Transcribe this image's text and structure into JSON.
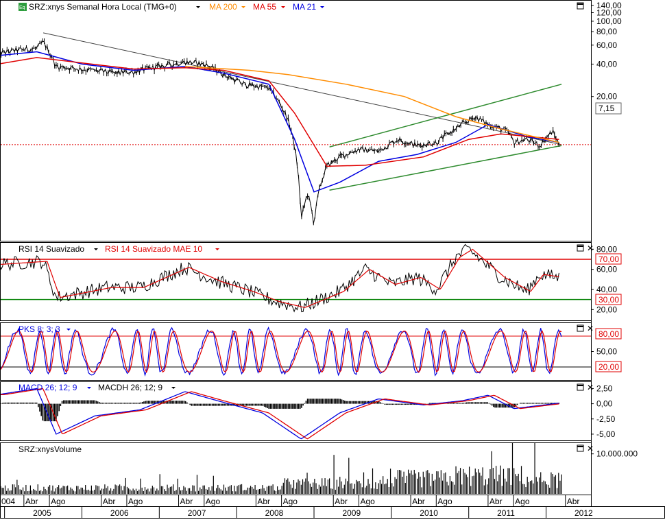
{
  "colors": {
    "price": "#000000",
    "ma200": "#ff8c00",
    "ma55": "#e00000",
    "ma21": "#0000e0",
    "channel": "#2e8b2e",
    "trendline": "#404040",
    "last_price": "#e00000",
    "rsi_upper": "#e00000",
    "rsi_lower": "#008000",
    "macd": "#0000e0",
    "signal": "#e00000",
    "histogram": "#000000",
    "volume": "#000000",
    "panel_border": "#000000"
  },
  "main_panel": {
    "icon": "Eq",
    "symbol": "SRZ:xnys Semanal Hora Local (TMG+0)",
    "ma200_label": "MA 200",
    "ma55_label": "MA 55",
    "ma21_label": "MA 21",
    "last_price_label": "7,15",
    "y_ticks": [
      "140,00",
      "120,00",
      "100,00",
      "80,00",
      "60,00",
      "40,00",
      "20,00"
    ]
  },
  "rsi_panel": {
    "label": "RSI 14 Suavizado",
    "label2": "RSI 14 Suavizado MAE 10",
    "level_high": "70,00",
    "level_low": "30,00",
    "y_ticks": [
      "80,00",
      "60,00",
      "40,00",
      "20,00"
    ]
  },
  "pks_panel": {
    "label": "PKS 8; 3; 3",
    "level_high": "80,00",
    "level_low": "20,00",
    "y_ticks": [
      "50,00"
    ]
  },
  "macd_panel": {
    "label": "MACD 26; 12; 9",
    "label2": "MACDH 26; 12; 9",
    "y_ticks": [
      "2,50",
      "0,00",
      "-2,50",
      "-5,00"
    ]
  },
  "volume_panel": {
    "label": "SRZ:xnysVolume",
    "y_ticks": [
      "10.000.000"
    ]
  },
  "time_axis": {
    "month_labels": [
      "004",
      "Abr",
      "Ago",
      "Abr",
      "Ago",
      "Abr",
      "Ago",
      "Abr",
      "Ago",
      "Abr",
      "Ago",
      "Abr",
      "Ago",
      "Abr",
      "Ago",
      "Abr"
    ],
    "year_labels": [
      "2005",
      "2006",
      "2007",
      "2008",
      "2009",
      "2010",
      "2011",
      "2012"
    ]
  },
  "chart_data": {
    "type": "line",
    "title": "SRZ:xnys Semanal Hora Local (TMG+0)",
    "y_scale": "log",
    "ylim": [
      1,
      140
    ],
    "last_value": 7.15,
    "series": [
      {
        "name": "SRZ:xnys",
        "x": [
          "2004-12",
          "2005-03",
          "2005-06",
          "2005-07",
          "2005-09",
          "2006-01",
          "2006-06",
          "2006-09",
          "2007-01",
          "2007-05",
          "2007-08",
          "2007-11",
          "2008-02",
          "2008-06",
          "2008-09",
          "2008-11",
          "2008-12",
          "2009-01",
          "2009-02",
          "2009-03",
          "2009-05",
          "2009-08",
          "2009-11",
          "2010-02",
          "2010-05",
          "2010-08",
          "2010-11",
          "2011-02",
          "2011-04",
          "2011-07",
          "2011-08",
          "2011-10",
          "2011-12",
          "2012-02",
          "2012-03"
        ],
        "values": [
          50,
          54,
          56,
          64,
          38,
          36,
          33,
          34,
          38,
          42,
          40,
          32,
          26,
          24,
          12,
          1.4,
          2.5,
          1.3,
          3.0,
          4.5,
          5.5,
          6.5,
          6.2,
          8.0,
          7.0,
          7.5,
          10.0,
          13.0,
          11.0,
          9.5,
          7.5,
          8.0,
          7.0,
          9.5,
          7.15
        ]
      },
      {
        "name": "MA 21",
        "x": [
          "2004-12",
          "2005-06",
          "2006-01",
          "2006-09",
          "2007-05",
          "2007-11",
          "2008-06",
          "2008-10",
          "2009-01",
          "2009-05",
          "2009-11",
          "2010-05",
          "2010-11",
          "2011-04",
          "2011-10",
          "2012-03"
        ],
        "values": [
          48,
          52,
          40,
          35,
          38,
          33,
          26,
          8,
          2.6,
          3.2,
          5.0,
          5.8,
          7.5,
          11.0,
          8.5,
          7.5
        ]
      },
      {
        "name": "MA 55",
        "x": [
          "2004-12",
          "2005-06",
          "2006-09",
          "2007-05",
          "2007-11",
          "2008-06",
          "2008-10",
          "2009-03",
          "2009-09",
          "2010-06",
          "2011-01",
          "2011-06",
          "2012-03"
        ],
        "values": [
          40,
          46,
          36,
          37,
          35,
          28,
          14,
          4.5,
          4.6,
          5.5,
          8.0,
          9.0,
          8.0
        ]
      },
      {
        "name": "MA 200",
        "x": [
          "2007-05",
          "2008-03",
          "2008-09",
          "2009-06",
          "2010-03",
          "2010-11",
          "2011-06",
          "2012-03"
        ],
        "values": [
          38,
          35,
          32,
          26,
          20,
          13,
          10,
          7.5
        ]
      }
    ],
    "indicators": {
      "rsi_14": {
        "x": [
          "2004-12",
          "2005-07",
          "2005-09",
          "2006-05",
          "2006-10",
          "2007-05",
          "2007-10",
          "2008-03",
          "2008-07",
          "2008-11",
          "2009-05",
          "2009-09",
          "2010-01",
          "2010-05",
          "2010-08",
          "2010-11",
          "2011-01",
          "2011-06",
          "2011-10",
          "2011-12",
          "2012-03"
        ],
        "values": [
          65,
          68,
          32,
          42,
          42,
          62,
          48,
          38,
          28,
          22,
          38,
          60,
          45,
          52,
          40,
          72,
          80,
          52,
          38,
          55,
          52
        ],
        "levels": [
          30,
          70
        ]
      },
      "pks": {
        "levels": [
          20,
          80
        ]
      },
      "macd": {
        "x": [
          "2004-12",
          "2005-06",
          "2005-09",
          "2006-03",
          "2006-10",
          "2007-05",
          "2007-10",
          "2008-05",
          "2008-11",
          "2009-05",
          "2009-11",
          "2010-06",
          "2010-12",
          "2011-04",
          "2011-08",
          "2012-03"
        ],
        "macd": [
          1.5,
          2.5,
          -5.0,
          -2.0,
          -1.0,
          2.0,
          0.5,
          -1.5,
          -5.8,
          -1.5,
          0.8,
          -0.2,
          0.5,
          1.4,
          -0.8,
          0.1
        ],
        "ylim": [
          -5.8,
          3.0
        ]
      },
      "volume": {
        "ylim": [
          0,
          12000000
        ]
      }
    }
  }
}
